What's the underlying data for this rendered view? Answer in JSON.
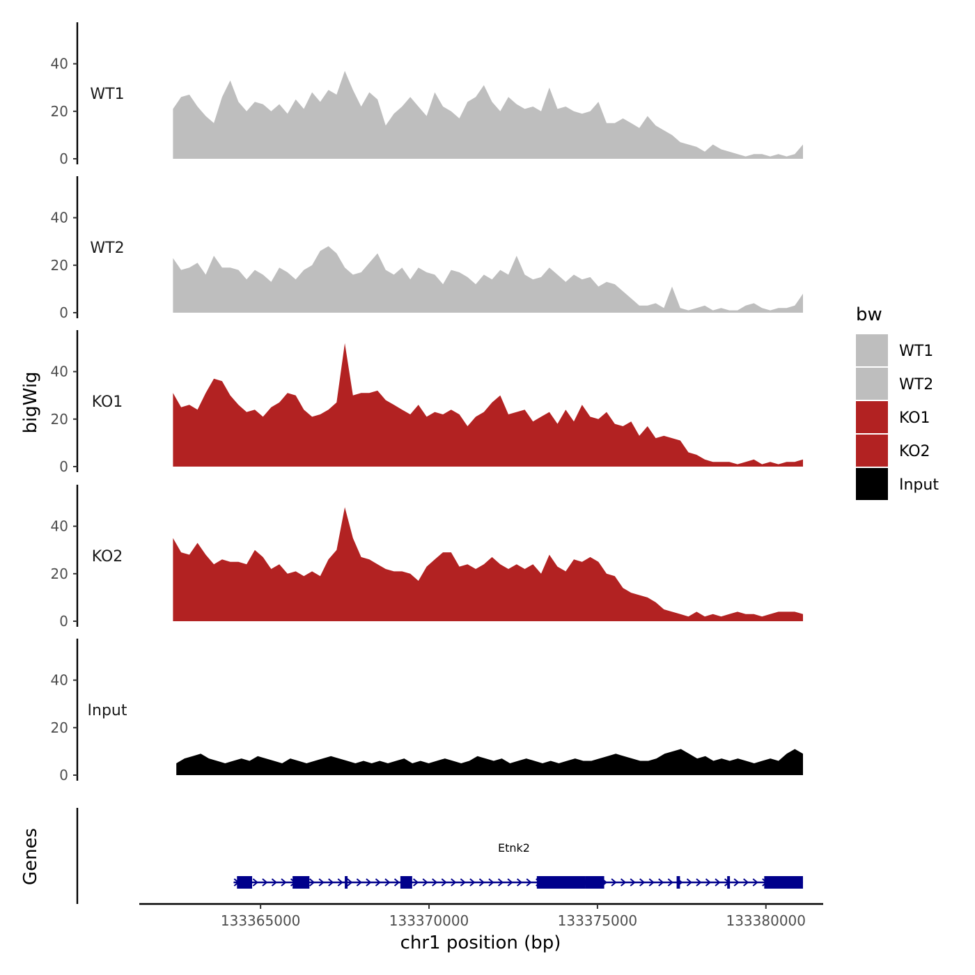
{
  "chart_data": {
    "type": "area",
    "ylabel": "bigWig",
    "xlabel": "chr1 position (bp)",
    "ylim": [
      0,
      55
    ],
    "yticks": [
      0,
      20,
      40
    ],
    "xlim": [
      133361400,
      133381700
    ],
    "xticks": [
      133365000,
      133370000,
      133375000,
      133380000
    ],
    "xtick_labels": [
      "133365000",
      "133370000",
      "133375000",
      "133380000"
    ],
    "x_start": 133362400,
    "x_end": 133381100,
    "legend": {
      "title": "bw",
      "position": "right",
      "entries": [
        {
          "label": "WT1",
          "color": "#bebebe"
        },
        {
          "label": "WT2",
          "color": "#bebebe"
        },
        {
          "label": "KO1",
          "color": "#b22222"
        },
        {
          "label": "KO2",
          "color": "#b22222"
        },
        {
          "label": "Input",
          "color": "#000000"
        }
      ]
    },
    "series": [
      {
        "name": "WT1",
        "color": "#bebebe",
        "values": [
          21,
          26,
          27,
          22,
          18,
          15,
          26,
          33,
          24,
          20,
          24,
          23,
          20,
          23,
          19,
          25,
          21,
          28,
          24,
          29,
          27,
          37,
          29,
          22,
          28,
          25,
          14,
          19,
          22,
          26,
          22,
          18,
          28,
          22,
          20,
          17,
          24,
          26,
          31,
          24,
          20,
          26,
          23,
          21,
          22,
          20,
          30,
          21,
          22,
          20,
          19,
          20,
          24,
          15,
          15,
          17,
          15,
          13,
          18,
          14,
          12,
          10,
          7,
          6,
          5,
          3,
          6,
          4,
          3,
          2,
          1,
          2,
          2,
          1,
          2,
          1,
          2,
          6
        ],
        "x_start": 133362400,
        "x_end": 133381100
      },
      {
        "name": "WT2",
        "color": "#bebebe",
        "values": [
          23,
          18,
          19,
          21,
          16,
          24,
          19,
          19,
          18,
          14,
          18,
          16,
          13,
          19,
          17,
          14,
          18,
          20,
          26,
          28,
          25,
          19,
          16,
          17,
          21,
          25,
          18,
          16,
          19,
          14,
          19,
          17,
          16,
          12,
          18,
          17,
          15,
          12,
          16,
          14,
          18,
          16,
          24,
          16,
          14,
          15,
          19,
          16,
          13,
          16,
          14,
          15,
          11,
          13,
          12,
          9,
          6,
          3,
          3,
          4,
          2,
          11,
          2,
          1,
          2,
          3,
          1,
          2,
          1,
          1,
          3,
          4,
          2,
          1,
          2,
          2,
          3,
          8
        ],
        "x_start": 133362400,
        "x_end": 133381100
      },
      {
        "name": "KO1",
        "color": "#b22222",
        "values": [
          31,
          25,
          26,
          24,
          31,
          37,
          36,
          30,
          26,
          23,
          24,
          21,
          25,
          27,
          31,
          30,
          24,
          21,
          22,
          24,
          27,
          52,
          30,
          31,
          31,
          32,
          28,
          26,
          24,
          22,
          26,
          21,
          23,
          22,
          24,
          22,
          17,
          21,
          23,
          27,
          30,
          22,
          23,
          24,
          19,
          21,
          23,
          18,
          24,
          19,
          26,
          21,
          20,
          23,
          18,
          17,
          19,
          13,
          17,
          12,
          13,
          12,
          11,
          6,
          5,
          3,
          2,
          2,
          2,
          1,
          2,
          3,
          1,
          2,
          1,
          2,
          2,
          3
        ],
        "x_start": 133362400,
        "x_end": 133381100
      },
      {
        "name": "KO2",
        "color": "#b22222",
        "values": [
          35,
          29,
          28,
          33,
          28,
          24,
          26,
          25,
          25,
          24,
          30,
          27,
          22,
          24,
          20,
          21,
          19,
          21,
          19,
          26,
          30,
          48,
          35,
          27,
          26,
          24,
          22,
          21,
          21,
          20,
          17,
          23,
          26,
          29,
          29,
          23,
          24,
          22,
          24,
          27,
          24,
          22,
          24,
          22,
          24,
          20,
          28,
          23,
          21,
          26,
          25,
          27,
          25,
          20,
          19,
          14,
          12,
          11,
          10,
          8,
          5,
          4,
          3,
          2,
          4,
          2,
          3,
          2,
          3,
          4,
          3,
          3,
          2,
          3,
          4,
          4,
          4,
          3
        ],
        "x_start": 133362400,
        "x_end": 133381100
      },
      {
        "name": "Input",
        "color": "#000000",
        "values": [
          5,
          7,
          8,
          9,
          7,
          6,
          5,
          6,
          7,
          6,
          8,
          7,
          6,
          5,
          7,
          6,
          5,
          6,
          7,
          8,
          7,
          6,
          5,
          6,
          5,
          6,
          5,
          6,
          7,
          5,
          6,
          5,
          6,
          7,
          6,
          5,
          6,
          8,
          7,
          6,
          7,
          5,
          6,
          7,
          6,
          5,
          6,
          5,
          6,
          7,
          6,
          6,
          7,
          8,
          9,
          8,
          7,
          6,
          6,
          7,
          9,
          10,
          11,
          9,
          7,
          8,
          6,
          7,
          6,
          7,
          6,
          5,
          6,
          7,
          6,
          9,
          11,
          9
        ],
        "x_start": 133362500,
        "x_end": 133381100
      }
    ],
    "genes_track": {
      "label": "Genes",
      "gene_name": "Etnk2",
      "strand": "+",
      "start": 133364200,
      "end": 133381100,
      "color": "#00008b",
      "exons": [
        {
          "start": 133364300,
          "end": 133364750
        },
        {
          "start": 133365950,
          "end": 133366450
        },
        {
          "start": 133367500,
          "end": 133367550
        },
        {
          "start": 133369150,
          "end": 133369500
        },
        {
          "start": 133373200,
          "end": 133374650
        },
        {
          "start": 133374650,
          "end": 133375200
        },
        {
          "start": 133377350,
          "end": 133377450
        },
        {
          "start": 133378850,
          "end": 133378900
        },
        {
          "start": 133379950,
          "end": 133381100
        }
      ]
    }
  },
  "colors": {
    "wt": "#bebebe",
    "ko": "#b22222",
    "input": "#000000",
    "gene": "#00008b",
    "axis": "#000000",
    "tick_text": "#4d4d4d"
  }
}
